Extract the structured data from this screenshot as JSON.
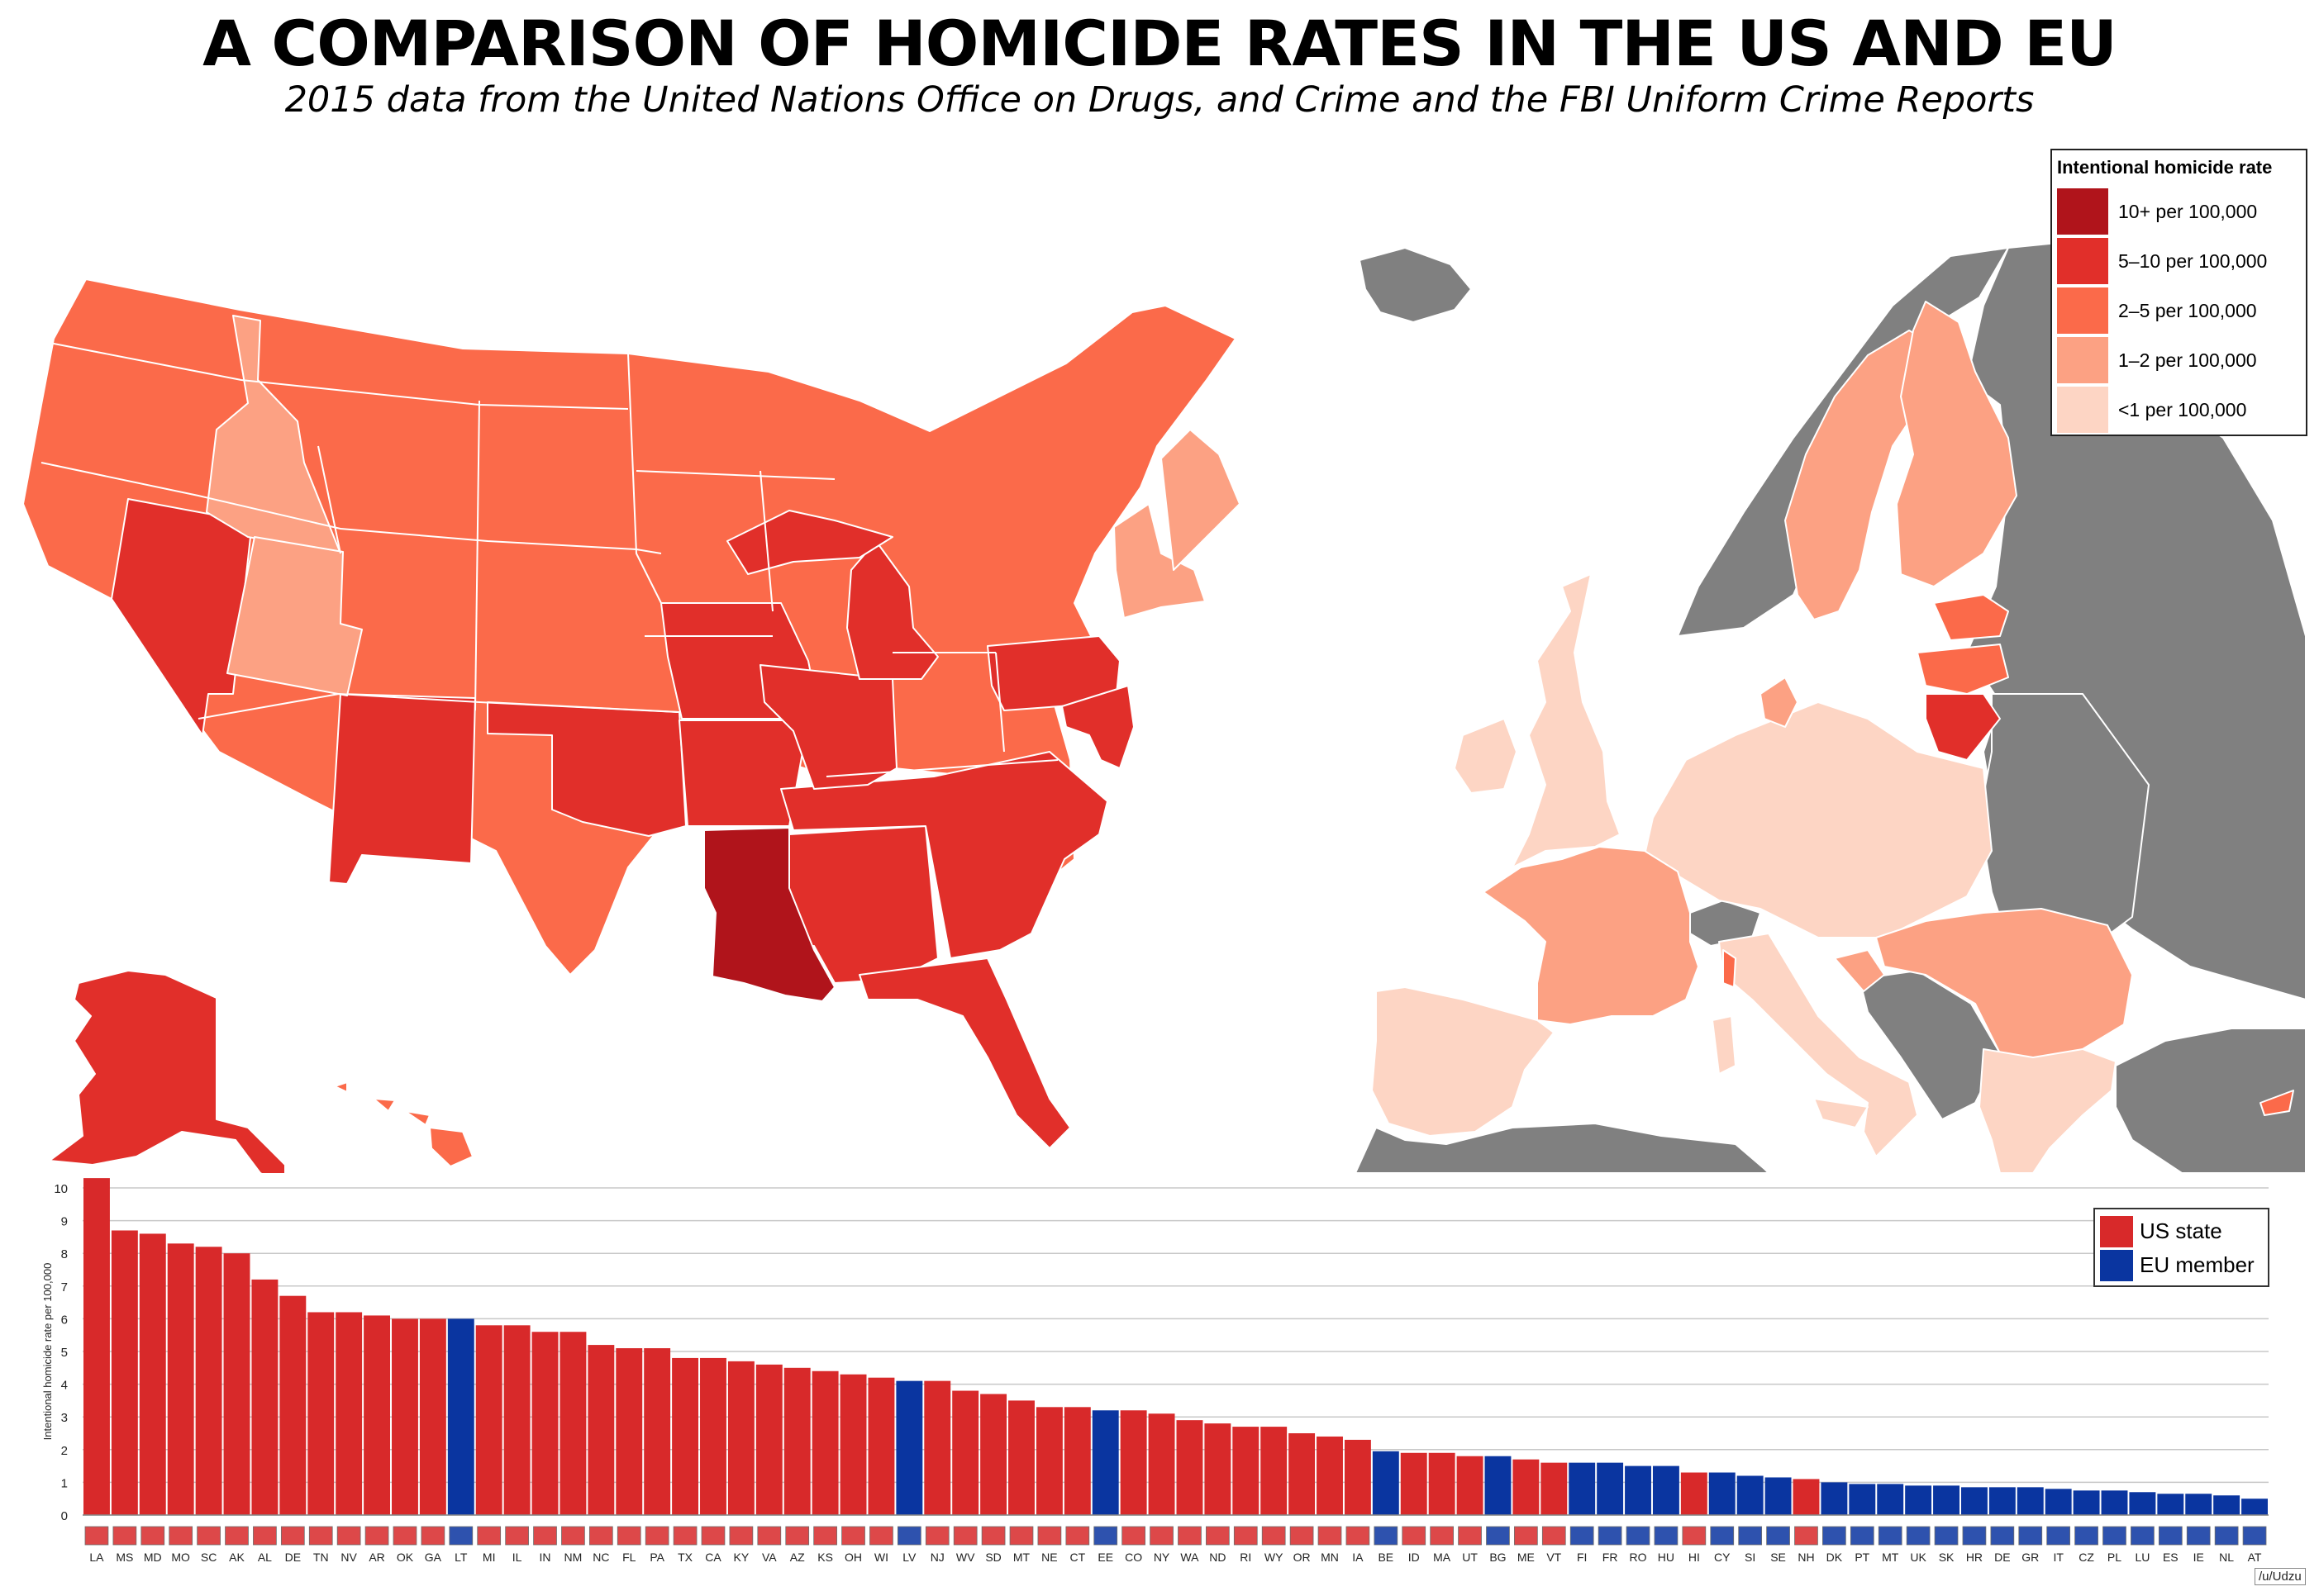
{
  "title": "A COMPARISON OF HOMICIDE RATES IN THE US AND EU",
  "subtitle": "2015 data from the United Nations Office on Drugs, and Crime and the FBI Uniform Crime Reports",
  "colors": {
    "tier_10plus": "#b0141b",
    "tier_5_10": "#e12f2a",
    "tier_2_5": "#fb6a4a",
    "tier_1_2": "#fca183",
    "tier_lt1": "#fdd5c4",
    "non_eu": "#808080",
    "us_bar": "#d8292a",
    "eu_bar": "#0a35a0"
  },
  "legend": {
    "title": "Intentional homicide rate",
    "items": [
      {
        "label": "10+ per 100,000",
        "color": "#b0141b"
      },
      {
        "label": "5–10 per 100,000",
        "color": "#e12f2a"
      },
      {
        "label": "2–5 per 100,000",
        "color": "#fb6a4a"
      },
      {
        "label": "1–2 per 100,000",
        "color": "#fca183"
      },
      {
        "label": "<1 per 100,000",
        "color": "#fdd5c4"
      }
    ]
  },
  "chart_legend": {
    "items": [
      {
        "label": "US state",
        "color": "#d8292a"
      },
      {
        "label": "EU member",
        "color": "#0a35a0"
      }
    ]
  },
  "credit": "/u/Udzu",
  "chart_data": {
    "type": "bar",
    "title": "",
    "xlabel": "",
    "ylabel": "Intentional homicide rate per 100,000",
    "ylim": [
      0,
      10
    ],
    "y_ticks": [
      0,
      1,
      2,
      3,
      4,
      5,
      6,
      7,
      8,
      9,
      10
    ],
    "grid": true,
    "legend_position": "top-right",
    "categories": [
      "LA",
      "MS",
      "MD",
      "MO",
      "SC",
      "AK",
      "AL",
      "DE",
      "TN",
      "NV",
      "AR",
      "OK",
      "GA",
      "LT",
      "MI",
      "IL",
      "IN",
      "NM",
      "NC",
      "FL",
      "PA",
      "TX",
      "CA",
      "KY",
      "VA",
      "AZ",
      "KS",
      "OH",
      "WI",
      "LV",
      "NJ",
      "WV",
      "SD",
      "MT",
      "NE",
      "CT",
      "EE",
      "CO",
      "NY",
      "WA",
      "ND",
      "RI",
      "WY",
      "OR",
      "MN",
      "IA",
      "BE",
      "ID",
      "MA",
      "UT",
      "BG",
      "ME",
      "VT",
      "FI",
      "FR",
      "RO",
      "HU",
      "HI",
      "CY",
      "SI",
      "SE",
      "NH",
      "DK",
      "PT",
      "MT",
      "UK",
      "SK",
      "HR",
      "DE",
      "GR",
      "IT",
      "CZ",
      "PL",
      "LU",
      "ES",
      "IE",
      "NL",
      "AT"
    ],
    "values": [
      10.3,
      8.7,
      8.6,
      8.3,
      8.2,
      8.0,
      7.2,
      6.7,
      6.2,
      6.2,
      6.1,
      6.0,
      6.0,
      6.0,
      5.8,
      5.8,
      5.6,
      5.6,
      5.2,
      5.1,
      5.1,
      4.8,
      4.8,
      4.7,
      4.6,
      4.5,
      4.4,
      4.3,
      4.2,
      4.1,
      4.1,
      3.8,
      3.7,
      3.5,
      3.3,
      3.3,
      3.2,
      3.2,
      3.1,
      2.9,
      2.8,
      2.7,
      2.7,
      2.5,
      2.4,
      2.3,
      1.95,
      1.9,
      1.9,
      1.8,
      1.8,
      1.7,
      1.6,
      1.6,
      1.6,
      1.5,
      1.5,
      1.3,
      1.3,
      1.2,
      1.15,
      1.1,
      1.0,
      0.95,
      0.95,
      0.9,
      0.9,
      0.85,
      0.85,
      0.85,
      0.8,
      0.75,
      0.75,
      0.7,
      0.65,
      0.65,
      0.6,
      0.5
    ],
    "groups": [
      "US",
      "US",
      "US",
      "US",
      "US",
      "US",
      "US",
      "US",
      "US",
      "US",
      "US",
      "US",
      "US",
      "EU",
      "US",
      "US",
      "US",
      "US",
      "US",
      "US",
      "US",
      "US",
      "US",
      "US",
      "US",
      "US",
      "US",
      "US",
      "US",
      "EU",
      "US",
      "US",
      "US",
      "US",
      "US",
      "US",
      "EU",
      "US",
      "US",
      "US",
      "US",
      "US",
      "US",
      "US",
      "US",
      "US",
      "EU",
      "US",
      "US",
      "US",
      "EU",
      "US",
      "US",
      "EU",
      "EU",
      "EU",
      "EU",
      "US",
      "EU",
      "EU",
      "EU",
      "US",
      "EU",
      "EU",
      "EU",
      "EU",
      "EU",
      "EU",
      "EU",
      "EU",
      "EU",
      "EU",
      "EU",
      "EU",
      "EU",
      "EU",
      "EU",
      "EU"
    ]
  }
}
